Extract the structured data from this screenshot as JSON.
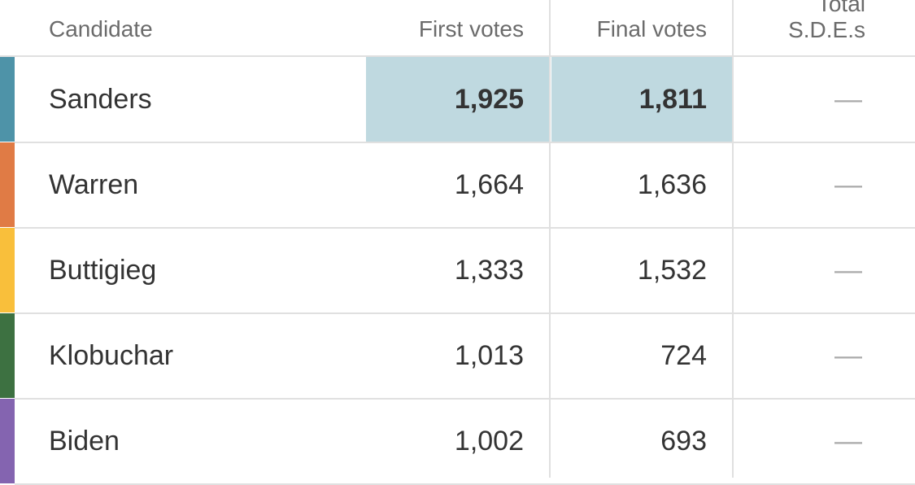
{
  "table": {
    "columns": [
      "Candidate",
      "First votes",
      "Final votes",
      "Total S.D.E.s"
    ],
    "rows": [
      {
        "candidate": "Sanders",
        "color": "#4e93a8",
        "first_votes": "1,925",
        "final_votes": "1,811",
        "total_sdes": "—"
      },
      {
        "candidate": "Warren",
        "color": "#e07b45",
        "first_votes": "1,664",
        "final_votes": "1,636",
        "total_sdes": "—"
      },
      {
        "candidate": "Buttigieg",
        "color": "#f9bf3b",
        "first_votes": "1,333",
        "final_votes": "1,532",
        "total_sdes": "—"
      },
      {
        "candidate": "Klobuchar",
        "color": "#3d7141",
        "first_votes": "1,013",
        "final_votes": "724",
        "total_sdes": "—"
      },
      {
        "candidate": "Biden",
        "color": "#8464b0",
        "first_votes": "1,002",
        "final_votes": "693",
        "total_sdes": "—"
      }
    ]
  }
}
